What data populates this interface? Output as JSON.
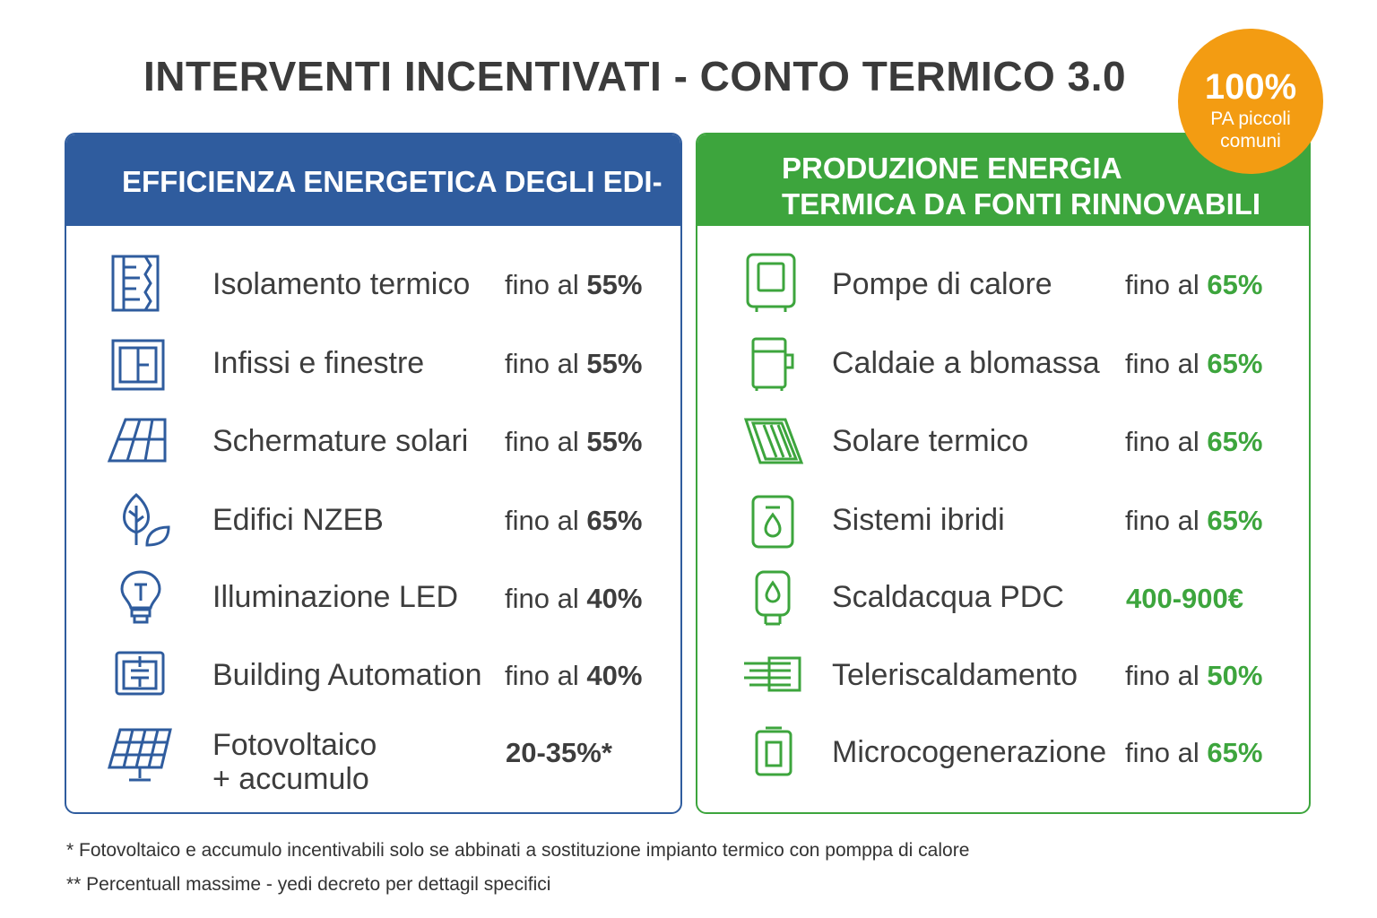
{
  "title": "INTERVENTI INCENTIVATI - CONTO TERMICO 3.0",
  "badge": {
    "value": "100%",
    "text": "PA piccoli comuni"
  },
  "left_panel": {
    "header": "EFFICIENZA ENERGETICA DEGLI EDI-",
    "items": [
      {
        "icon": "wall-insulation-icon",
        "label": "Isolamento termico",
        "prefix": "fino al",
        "value": "55%"
      },
      {
        "icon": "window-icon",
        "label": "Infissi e finestre",
        "prefix": "fino al",
        "value": "55%"
      },
      {
        "icon": "solar-shading-icon",
        "label": "Schermature solari",
        "prefix": "fino al",
        "value": "55%"
      },
      {
        "icon": "leaf-icon",
        "label": "Edifici NZEB",
        "prefix": "fino al",
        "value": "65%"
      },
      {
        "icon": "light-bulb-icon",
        "label": "Illuminazione LED",
        "prefix": "fino al",
        "value": "40%"
      },
      {
        "icon": "control-panel-icon",
        "label": "Building Automation",
        "prefix": "fino al",
        "value": "40%"
      },
      {
        "icon": "solar-panel-icon",
        "label_line1": "Fotovoltaico",
        "label_line2": "+ accumulo",
        "value_full": "20-35%*"
      }
    ]
  },
  "right_panel": {
    "header_line1": "PRODUZIONE ENERGIA",
    "header_line2": "TERMICA DA FONTI RINNOVABILI",
    "items": [
      {
        "icon": "heat-pump-icon",
        "label": "Pompe di calore",
        "prefix": "fino al",
        "value": "65%"
      },
      {
        "icon": "boiler-icon",
        "label": "Caldaie a blomassa",
        "prefix": "fino al",
        "value": "65%"
      },
      {
        "icon": "solar-collector-icon",
        "label": "Solare termico",
        "prefix": "fino al",
        "value": "65%"
      },
      {
        "icon": "hybrid-system-icon",
        "label": "Sistemi ibridi",
        "prefix": "fino al",
        "value": "65%"
      },
      {
        "icon": "water-heater-icon",
        "label": "Scaldacqua PDC",
        "value_full": "400-900€"
      },
      {
        "icon": "district-heating-icon",
        "label": "Teleriscaldamento",
        "prefix": "fino al",
        "value": "50%"
      },
      {
        "icon": "cogeneration-icon",
        "label": "Microcogenerazione",
        "prefix": "fino al",
        "value": "65%"
      }
    ]
  },
  "notes": [
    "* Fotovoltaico e accumulo incentivabili solo se abbinati a sostituzione impianto termico con  pomppa di calore",
    "** Percentuall massime - yedi decreto per dettagil specifici"
  ],
  "colors": {
    "blue": "#2f5c9e",
    "green": "#3da53d",
    "orange": "#f39c12"
  }
}
